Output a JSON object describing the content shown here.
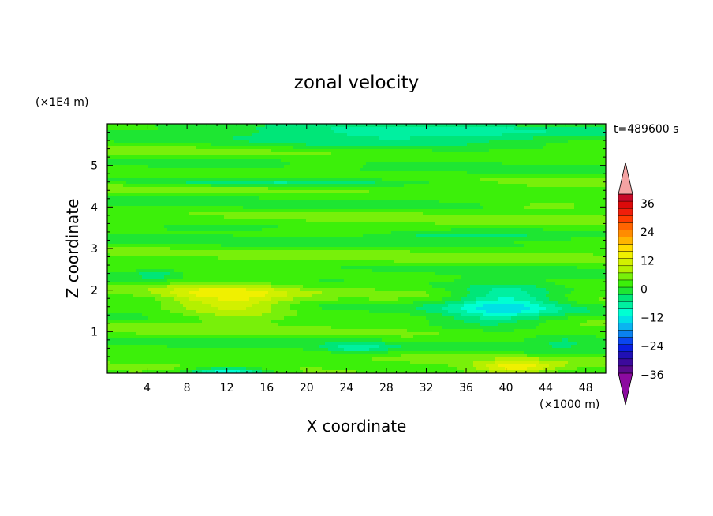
{
  "chart_data": {
    "type": "heatmap",
    "title": "zonal velocity",
    "xlabel": "X coordinate",
    "ylabel": "Z coordinate",
    "x_unit": "(×1000 m)",
    "y_unit": "(×1E4 m)",
    "time_label": "t=489600 s",
    "xlim": [
      0,
      50
    ],
    "ylim": [
      0,
      6
    ],
    "x_ticks": [
      4,
      8,
      12,
      16,
      20,
      24,
      28,
      32,
      36,
      40,
      44,
      48
    ],
    "y_ticks": [
      1,
      2,
      3,
      4,
      5
    ],
    "colorbar": {
      "levels": [
        -42,
        -39,
        -36,
        -33,
        -30,
        -27,
        -24,
        -21,
        -18,
        -15,
        -12,
        -9,
        -6,
        -3,
        0,
        3,
        6,
        9,
        12,
        15,
        18,
        21,
        24,
        27,
        30,
        33,
        36,
        39,
        42
      ],
      "tick_labels": [
        "36",
        "24",
        "12",
        "0",
        "-12",
        "-24",
        "-36"
      ],
      "tick_values": [
        36,
        24,
        12,
        0,
        -12,
        -24,
        -36
      ],
      "colors": [
        "#5a0a8c",
        "#3c0a9c",
        "#2010b4",
        "#0a1ee0",
        "#0a46f0",
        "#0a82f0",
        "#0ab4f0",
        "#00e0e6",
        "#00ffd2",
        "#00f0a0",
        "#00e678",
        "#1ee632",
        "#3cf00a",
        "#78f00a",
        "#b4f000",
        "#d2f000",
        "#f0f000",
        "#ffdc00",
        "#ffb400",
        "#ff8c00",
        "#ff6400",
        "#ff3c00",
        "#f01e0a",
        "#dc0a0a",
        "#c80a28"
      ],
      "over_color": "#f4a3a3",
      "under_color": "#8c0aa0"
    },
    "field": {
      "background": 1.5,
      "features": [
        {
          "x": 13,
          "z": 1.75,
          "sx": 5.5,
          "sz": 0.45,
          "v": 11
        },
        {
          "x": 8,
          "z": 1.9,
          "sx": 3,
          "sz": 0.4,
          "v": 3
        },
        {
          "x": 40,
          "z": 1.75,
          "sx": 5.5,
          "sz": 0.4,
          "v": -13
        },
        {
          "x": 38,
          "z": 1.3,
          "sx": 6,
          "sz": 0.3,
          "v": -5
        },
        {
          "x": 12,
          "z": 0.0,
          "sx": 4,
          "sz": 0.15,
          "v": -15
        },
        {
          "x": 41,
          "z": 0.15,
          "sx": 4,
          "sz": 0.15,
          "v": 12
        },
        {
          "x": 25,
          "z": 0.6,
          "sx": 3,
          "sz": 0.15,
          "v": -7
        },
        {
          "x": 30,
          "z": 5.7,
          "sx": 18,
          "sz": 0.35,
          "v": -8
        },
        {
          "x": 22,
          "z": 5.0,
          "sx": 4,
          "sz": 0.1,
          "v": 5
        },
        {
          "x": 44,
          "z": 4.0,
          "sx": 6,
          "sz": 0.12,
          "v": 5
        },
        {
          "x": 18,
          "z": 4.6,
          "sx": 15,
          "sz": 0.1,
          "v": -8
        },
        {
          "x": 36,
          "z": 3.3,
          "sx": 8,
          "sz": 0.1,
          "v": -6
        },
        {
          "x": 10,
          "z": 3.5,
          "sx": 8,
          "sz": 0.1,
          "v": -5
        },
        {
          "x": 5,
          "z": 2.4,
          "sx": 2,
          "sz": 0.1,
          "v": -6
        },
        {
          "x": 46,
          "z": 0.8,
          "sx": 4,
          "sz": 0.15,
          "v": -5
        }
      ]
    }
  }
}
